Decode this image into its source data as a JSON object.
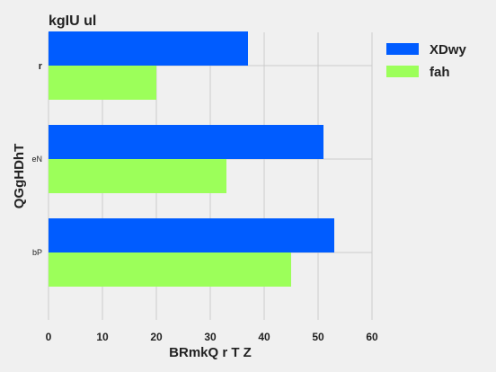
{
  "chart_data": {
    "type": "bar",
    "orientation": "horizontal",
    "title": "kgIU ul",
    "xlabel": "BRmkQ r T Z",
    "ylabel": "QGgHDhT",
    "categories": [
      "r",
      "eN",
      "bP"
    ],
    "series": [
      {
        "name": "XDwy",
        "values": [
          37,
          51,
          53
        ],
        "color": "#005cff"
      },
      {
        "name": "fah",
        "values": [
          20,
          33,
          45
        ],
        "color": "#9cff5a"
      }
    ],
    "xlim": [
      0,
      60
    ],
    "xticks": [
      0,
      10,
      20,
      30,
      40,
      50,
      60
    ],
    "grid": true,
    "legend_position": "top-right"
  }
}
